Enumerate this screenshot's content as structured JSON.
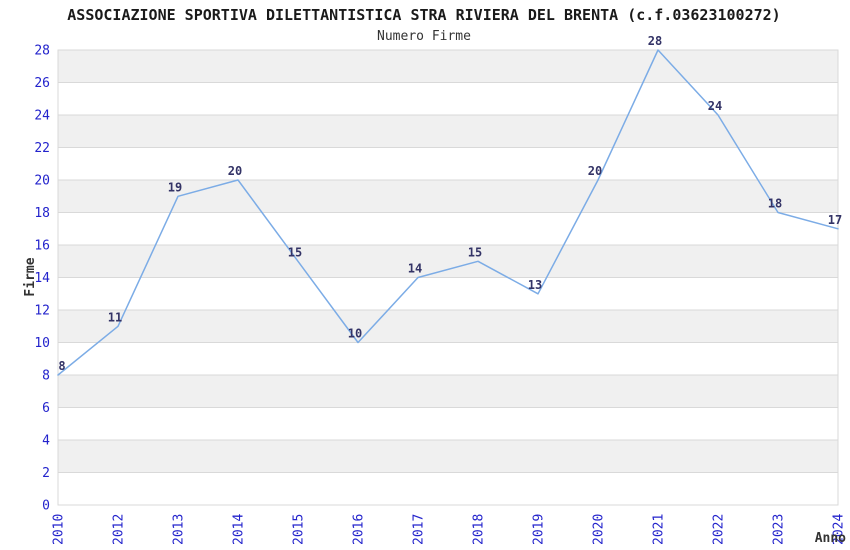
{
  "chart_data": {
    "type": "line",
    "title": "ASSOCIAZIONE SPORTIVA DILETTANTISTICA STRA RIVIERA DEL BRENTA (c.f.03623100272)",
    "subtitle": "Numero Firme",
    "xlabel": "Anno",
    "ylabel": "Firme",
    "categories": [
      "2010",
      "2012",
      "2013",
      "2014",
      "2015",
      "2016",
      "2017",
      "2018",
      "2019",
      "2020",
      "2021",
      "2022",
      "2023",
      "2024"
    ],
    "values": [
      8,
      11,
      19,
      20,
      15,
      10,
      14,
      15,
      13,
      20,
      28,
      24,
      18,
      17
    ],
    "ylim": [
      0,
      28
    ],
    "ytick_step": 2,
    "grid": "horizontal-gridlines-with-alternating-bands",
    "legend": "none",
    "colors": {
      "line": "#7CACE6",
      "tick_label": "#2323CC",
      "data_label": "#333366",
      "band": "#F0F0F0",
      "gridline": "#D9D9D9",
      "title": "#1A1A1A",
      "axis_label": "#333333"
    }
  }
}
